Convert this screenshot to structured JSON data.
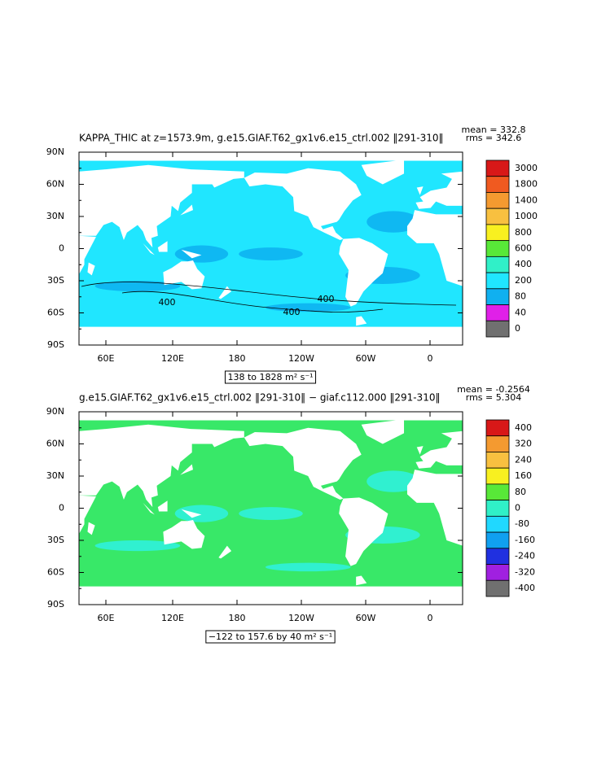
{
  "panels": [
    {
      "title": "KAPPA_THIC at z=1573.9m, g.e15.GIAF.T62_gx1v6.e15_ctrl.002 ‖291-310‖",
      "mean": "mean = 332.8",
      "rms": "rms = 342.6",
      "range_label": "138 to 1828 m² s⁻¹",
      "ocean_colors": [
        "#20e6ff",
        "#0fb8f2"
      ],
      "contour_labels": [
        400,
        400,
        400
      ],
      "colorbar": {
        "levels": [
          3000,
          1800,
          1400,
          1000,
          800,
          600,
          400,
          200,
          80,
          40,
          0
        ],
        "colors": [
          "#d81818",
          "#f05a20",
          "#f49a30",
          "#f8c040",
          "#f8f020",
          "#58e838",
          "#30f0c8",
          "#20e6ff",
          "#10b0f0",
          "#e020e8",
          "#707070"
        ]
      }
    },
    {
      "title": "g.e15.GIAF.T62_gx1v6.e15_ctrl.002 ‖291-310‖ − giaf.c112.000 ‖291-310‖",
      "mean": "mean = -0.2564",
      "rms": "rms = 5.304",
      "range_label": "−122 to 157.6 by 40 m² s⁻¹",
      "ocean_colors": [
        "#38e868",
        "#30f0d0"
      ],
      "contour_labels": [],
      "colorbar": {
        "levels": [
          400,
          320,
          240,
          160,
          80,
          0,
          -80,
          -160,
          -240,
          -320,
          -400
        ],
        "colors": [
          "#d81818",
          "#f49a30",
          "#f8c040",
          "#f8f020",
          "#58e838",
          "#30f0c8",
          "#20d8ff",
          "#10a0f0",
          "#2030e0",
          "#a020e0",
          "#707070"
        ]
      }
    }
  ],
  "lat_ticks": [
    "90N",
    "60N",
    "30N",
    "0",
    "30S",
    "60S",
    "90S"
  ],
  "lon_ticks": [
    "60E",
    "120E",
    "180",
    "120W",
    "60W",
    "0"
  ]
}
